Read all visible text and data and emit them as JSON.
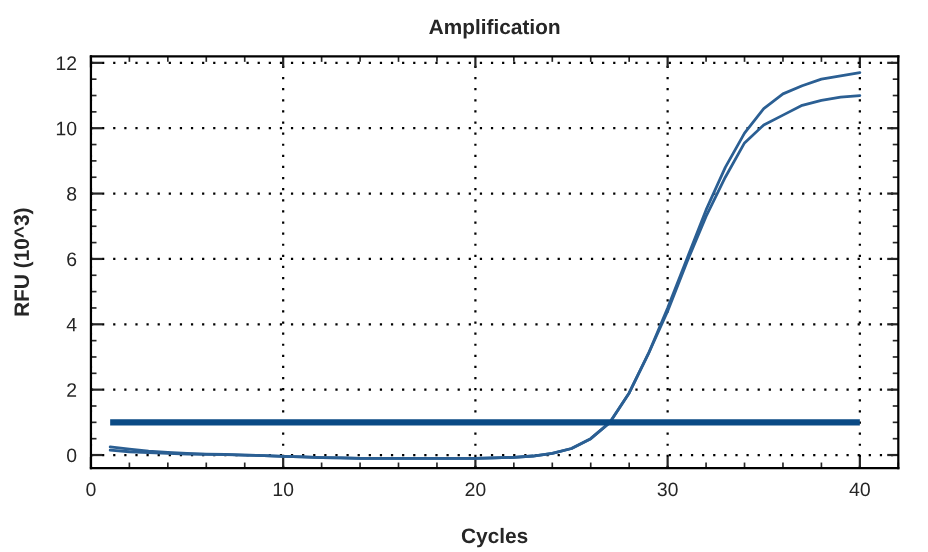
{
  "chart_data": {
    "type": "line",
    "title": "Amplification",
    "xlabel": "Cycles",
    "ylabel": "RFU (10^3)",
    "x": [
      1,
      2,
      3,
      4,
      5,
      6,
      7,
      8,
      9,
      10,
      11,
      12,
      13,
      14,
      15,
      16,
      17,
      18,
      19,
      20,
      21,
      22,
      23,
      24,
      25,
      26,
      27,
      28,
      29,
      30,
      31,
      32,
      33,
      34,
      35,
      36,
      37,
      38,
      39,
      40
    ],
    "series": [
      {
        "color": "#2b5f93",
        "values": [
          0.25,
          0.18,
          0.12,
          0.08,
          0.05,
          0.03,
          0.02,
          0.0,
          -0.02,
          -0.04,
          -0.06,
          -0.08,
          -0.09,
          -0.1,
          -0.1,
          -0.1,
          -0.1,
          -0.1,
          -0.1,
          -0.1,
          -0.09,
          -0.07,
          -0.03,
          0.05,
          0.2,
          0.5,
          1.0,
          1.9,
          3.1,
          4.5,
          6.0,
          7.5,
          8.8,
          9.85,
          10.6,
          11.05,
          11.3,
          11.5,
          11.6,
          11.7
        ]
      },
      {
        "color": "#2b5f93",
        "values": [
          0.15,
          0.1,
          0.07,
          0.05,
          0.03,
          0.02,
          0.01,
          0.0,
          -0.02,
          -0.04,
          -0.06,
          -0.08,
          -0.09,
          -0.1,
          -0.1,
          -0.1,
          -0.1,
          -0.1,
          -0.1,
          -0.1,
          -0.09,
          -0.07,
          -0.03,
          0.05,
          0.2,
          0.5,
          1.0,
          1.9,
          3.1,
          4.4,
          5.9,
          7.3,
          8.5,
          9.55,
          10.1,
          10.4,
          10.7,
          10.85,
          10.95,
          11.0
        ]
      }
    ],
    "ref_lines": [
      {
        "axis": "y",
        "value": 1,
        "label": null,
        "color": "#0a4a85"
      }
    ],
    "xlim": [
      0,
      42
    ],
    "ylim": [
      -0.4,
      12.2
    ],
    "xticks": [
      0,
      10,
      20,
      30,
      40
    ],
    "yticks": [
      0,
      2,
      4,
      6,
      8,
      10,
      12
    ],
    "grid": true,
    "line_style": "solid",
    "marker": "none",
    "legend": false
  }
}
